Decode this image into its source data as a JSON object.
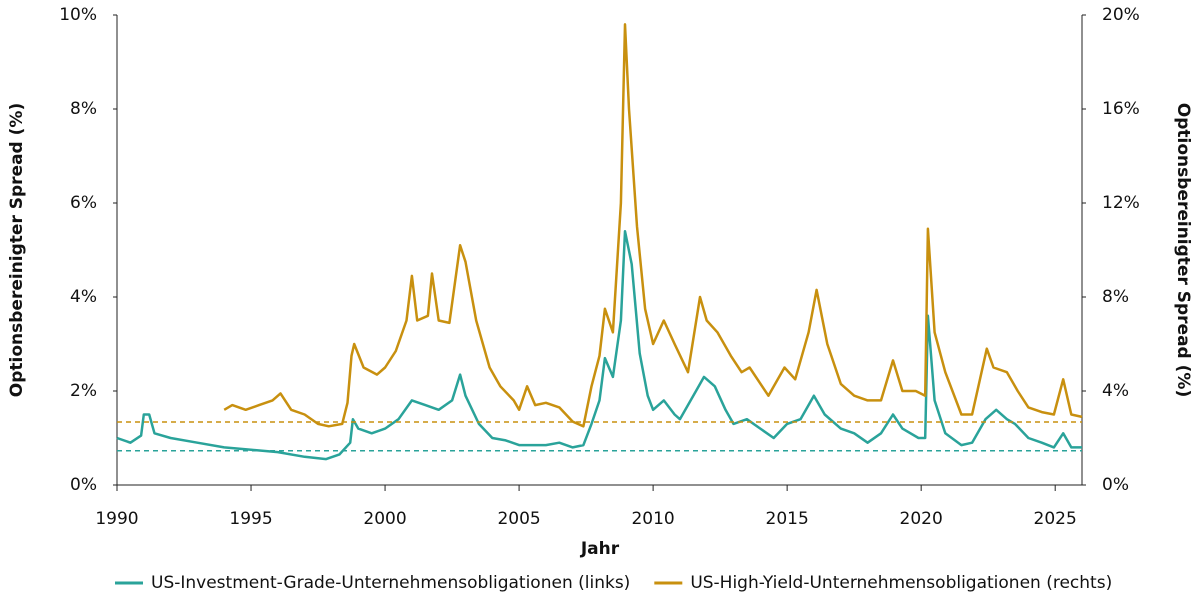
{
  "chart_data": {
    "type": "line",
    "x_label": "Jahr",
    "y_label": "Optionsbereinigter Spread (%)",
    "y2_label": "Optionsbereinigter Spread (%)",
    "xlim": [
      1990,
      2026
    ],
    "xticks": [
      1990,
      1995,
      2000,
      2005,
      2010,
      2015,
      2020,
      2025
    ],
    "ylim": [
      0,
      10
    ],
    "yticks": [
      {
        "value": 0,
        "label": "0%"
      },
      {
        "value": 2,
        "label": "2%"
      },
      {
        "value": 4,
        "label": "4%"
      },
      {
        "value": 6,
        "label": "6%"
      },
      {
        "value": 8,
        "label": "8%"
      },
      {
        "value": 10,
        "label": "10%"
      }
    ],
    "y2lim": [
      0,
      20
    ],
    "y2ticks": [
      {
        "value": 0,
        "label": "0%"
      },
      {
        "value": 4,
        "label": "4%"
      },
      {
        "value": 8,
        "label": "8%"
      },
      {
        "value": 12,
        "label": "12%"
      },
      {
        "value": 16,
        "label": "16%"
      },
      {
        "value": 20,
        "label": "20%"
      }
    ],
    "legend": "bottom",
    "series": [
      {
        "name": "US-Investment-Grade-Unternehmensobligationen (links)",
        "color": "#2aa39a",
        "axis": "y",
        "reference": 0.73,
        "x": [
          1990,
          1990.5,
          1990.9,
          1991.0,
          1991.2,
          1991.4,
          1992,
          1993,
          1994,
          1995,
          1996,
          1997,
          1997.8,
          1998.3,
          1998.7,
          1998.8,
          1999,
          1999.5,
          2000,
          2000.5,
          2001,
          2001.5,
          2002,
          2002.5,
          2002.8,
          2003,
          2003.5,
          2004,
          2004.5,
          2005,
          2005.5,
          2006,
          2006.5,
          2007,
          2007.4,
          2007.7,
          2008,
          2008.2,
          2008.5,
          2008.8,
          2008.95,
          2009.2,
          2009.5,
          2009.8,
          2010,
          2010.4,
          2010.8,
          2011,
          2011.6,
          2011.9,
          2012.3,
          2012.7,
          2013,
          2013.5,
          2014,
          2014.5,
          2015,
          2015.5,
          2016,
          2016.4,
          2017,
          2017.5,
          2018,
          2018.5,
          2018.95,
          2019.3,
          2019.9,
          2020.15,
          2020.25,
          2020.5,
          2020.9,
          2021.5,
          2021.9,
          2022.4,
          2022.8,
          2023.2,
          2023.5,
          2024,
          2024.5,
          2024.95,
          2025.3,
          2025.6,
          2026
        ],
        "values": [
          1.0,
          0.9,
          1.05,
          1.5,
          1.5,
          1.1,
          1.0,
          0.9,
          0.8,
          0.75,
          0.7,
          0.6,
          0.55,
          0.65,
          0.9,
          1.4,
          1.2,
          1.1,
          1.2,
          1.4,
          1.8,
          1.7,
          1.6,
          1.8,
          2.35,
          1.9,
          1.3,
          1.0,
          0.95,
          0.85,
          0.85,
          0.85,
          0.9,
          0.8,
          0.85,
          1.3,
          1.8,
          2.7,
          2.3,
          3.5,
          5.4,
          4.7,
          2.8,
          1.9,
          1.6,
          1.8,
          1.5,
          1.4,
          2.0,
          2.3,
          2.1,
          1.6,
          1.3,
          1.4,
          1.2,
          1.0,
          1.3,
          1.4,
          1.9,
          1.5,
          1.2,
          1.1,
          0.9,
          1.1,
          1.5,
          1.2,
          1.0,
          1.0,
          3.6,
          1.8,
          1.1,
          0.85,
          0.9,
          1.4,
          1.6,
          1.4,
          1.3,
          1.0,
          0.9,
          0.8,
          1.1,
          0.8,
          0.8
        ]
      },
      {
        "name": "US-High-Yield-Unternehmensobligationen (rechts)",
        "color": "#c8900f",
        "axis": "y2",
        "reference": 2.68,
        "x": [
          1994.0,
          1994.3,
          1994.8,
          1995.3,
          1995.8,
          1996.1,
          1996.5,
          1997,
          1997.5,
          1997.9,
          1998.4,
          1998.6,
          1998.75,
          1998.85,
          1999.2,
          1999.7,
          2000,
          2000.4,
          2000.8,
          2001.0,
          2001.2,
          2001.6,
          2001.75,
          2002.0,
          2002.4,
          2002.8,
          2003.0,
          2003.4,
          2003.9,
          2004.3,
          2004.8,
          2005.0,
          2005.3,
          2005.6,
          2006,
          2006.5,
          2007.0,
          2007.4,
          2007.7,
          2008.0,
          2008.2,
          2008.5,
          2008.8,
          2008.95,
          2009.1,
          2009.4,
          2009.7,
          2010.0,
          2010.4,
          2010.8,
          2011.3,
          2011.75,
          2012.0,
          2012.4,
          2012.9,
          2013.3,
          2013.6,
          2014.3,
          2014.9,
          2015.3,
          2015.8,
          2016.1,
          2016.5,
          2017,
          2017.5,
          2018,
          2018.5,
          2018.95,
          2019.3,
          2019.8,
          2020.15,
          2020.25,
          2020.5,
          2020.9,
          2021.5,
          2021.9,
          2022.45,
          2022.7,
          2023.2,
          2023.6,
          2024.0,
          2024.5,
          2024.95,
          2025.3,
          2025.6,
          2026
        ],
        "values": [
          3.2,
          3.4,
          3.2,
          3.4,
          3.6,
          3.9,
          3.2,
          3.0,
          2.6,
          2.5,
          2.6,
          3.5,
          5.5,
          6.0,
          5.0,
          4.7,
          5.0,
          5.7,
          7.0,
          8.9,
          7.0,
          7.2,
          9.0,
          7.0,
          6.9,
          10.2,
          9.5,
          7.0,
          5.0,
          4.2,
          3.6,
          3.2,
          4.2,
          3.4,
          3.5,
          3.3,
          2.7,
          2.5,
          4.2,
          5.5,
          7.5,
          6.5,
          12,
          19.6,
          16,
          11,
          7.5,
          6.0,
          7.0,
          6.0,
          4.8,
          8.0,
          7.0,
          6.5,
          5.5,
          4.8,
          5.0,
          3.8,
          5.0,
          4.5,
          6.5,
          8.3,
          6.0,
          4.3,
          3.8,
          3.6,
          3.6,
          5.3,
          4.0,
          4.0,
          3.8,
          10.9,
          6.5,
          4.8,
          3.0,
          3.0,
          5.8,
          5.0,
          4.8,
          4.0,
          3.3,
          3.1,
          3.0,
          4.5,
          3.0,
          2.9
        ]
      }
    ]
  }
}
